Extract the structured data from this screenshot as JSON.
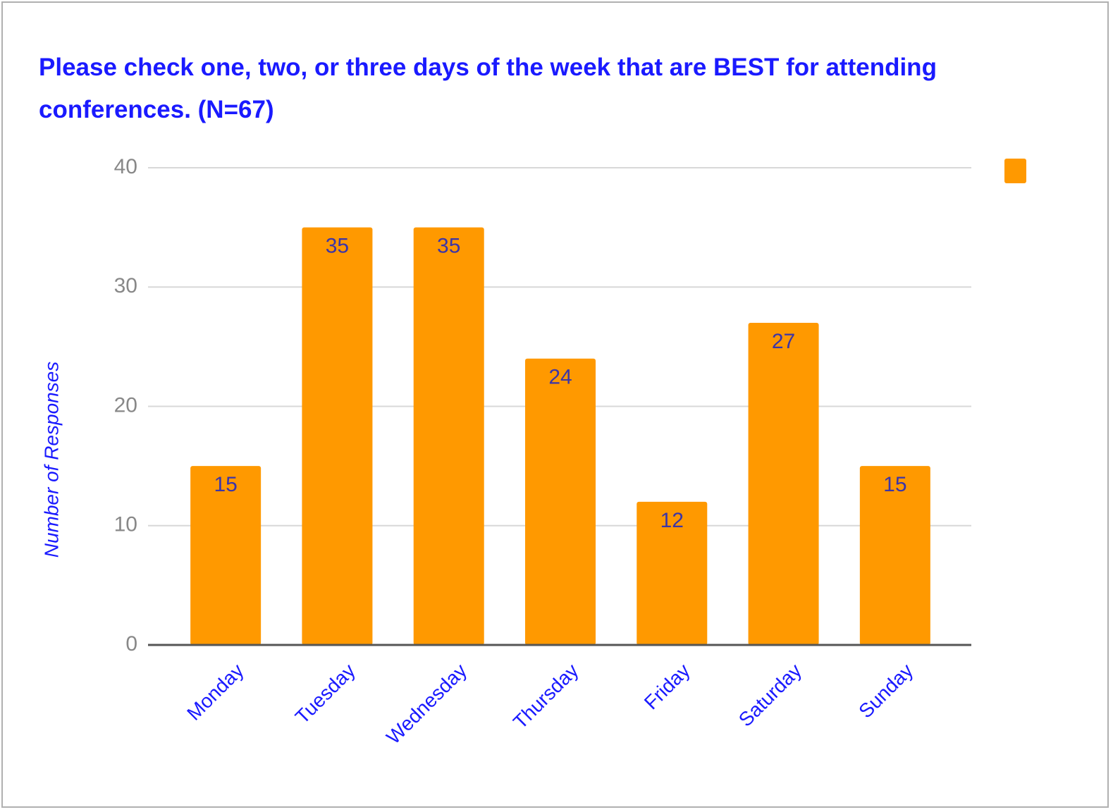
{
  "chart_data": {
    "type": "bar",
    "title": "Please check one, two, or three days of the week that are BEST for attending conferences. (N=67)",
    "y_label": "Number of Responses",
    "categories": [
      "Monday",
      "Tuesday",
      "Wednesday",
      "Thursday",
      "Friday",
      "Saturday",
      "Sunday"
    ],
    "values": [
      15,
      35,
      35,
      24,
      12,
      27,
      15
    ],
    "color": "#ff9900",
    "ylim": [
      0,
      40
    ],
    "yticks": [
      0,
      10,
      20,
      30,
      40
    ],
    "grid": true,
    "legend": "top-right"
  }
}
